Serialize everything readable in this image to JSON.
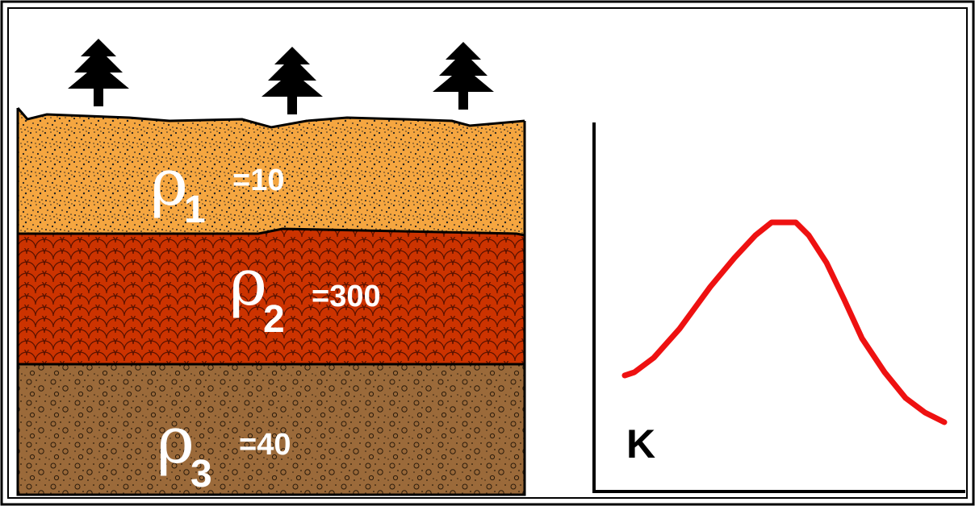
{
  "layers": [
    {
      "symbol": "ρ",
      "subscript": "1",
      "value": "=10",
      "color": "#f5a640",
      "pattern": "speckled-sand"
    },
    {
      "symbol": "ρ",
      "subscript": "2",
      "value": "=300",
      "color": "#cc3300",
      "pattern": "scales"
    },
    {
      "symbol": "ρ",
      "subscript": "3",
      "value": "=40",
      "color": "#9b6a3a",
      "pattern": "pebbles"
    }
  ],
  "trees": [
    "tree-icon",
    "tree-icon",
    "tree-icon"
  ],
  "plot": {
    "axis_label": "K",
    "curve_color": "#ee1111",
    "axis_color": "#000000"
  },
  "colors": {
    "outline": "#000000",
    "frame": "#000000",
    "background": "#ffffff"
  }
}
